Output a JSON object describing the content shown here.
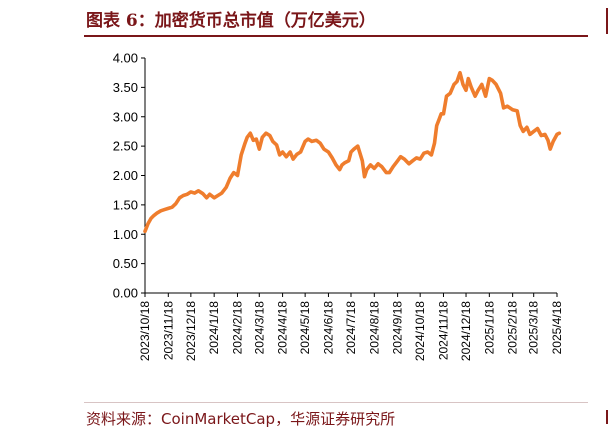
{
  "header": {
    "title": "图表 6：加密货币总市值（万亿美元）"
  },
  "footer": {
    "source": "资料来源：CoinMarketCap，华源证券研究所"
  },
  "colors": {
    "accent": "#7a1619",
    "series": "#ef7d2d"
  },
  "chart_data": {
    "type": "line",
    "title": "图表 6：加密货币总市值（万亿美元）",
    "xlabel": "",
    "ylabel": "",
    "ylim": [
      0,
      4
    ],
    "yticks": [
      "0.00",
      "0.50",
      "1.00",
      "1.50",
      "2.00",
      "2.50",
      "3.00",
      "3.50",
      "4.00"
    ],
    "xticks": [
      "2023/10/18",
      "2023/11/18",
      "2023/12/18",
      "2024/1/18",
      "2024/2/18",
      "2024/3/18",
      "2024/4/18",
      "2024/5/18",
      "2024/6/18",
      "2024/7/18",
      "2024/8/18",
      "2024/9/18",
      "2024/10/18",
      "2024/11/18",
      "2024/12/18",
      "2025/1/18",
      "2025/2/18",
      "2025/3/18",
      "2025/4/18"
    ],
    "grid": false,
    "legend": "none",
    "series": [
      {
        "x": [
          "2023/10/18",
          "2023/10/22",
          "2023/10/26",
          "2023/10/30",
          "2023/11/3",
          "2023/11/8",
          "2023/11/13",
          "2023/11/18",
          "2023/11/23",
          "2023/11/28",
          "2023/12/3",
          "2023/12/8",
          "2023/12/13",
          "2023/12/18",
          "2023/12/23",
          "2023/12/28",
          "2024/1/3",
          "2024/1/8",
          "2024/1/12",
          "2024/1/18",
          "2024/1/23",
          "2024/1/28",
          "2024/2/3",
          "2024/2/8",
          "2024/2/13",
          "2024/2/18",
          "2024/2/23",
          "2024/2/28",
          "2024/3/2",
          "2024/3/6",
          "2024/3/10",
          "2024/3/14",
          "2024/3/18",
          "2024/3/22",
          "2024/3/27",
          "2024/4/1",
          "2024/4/5",
          "2024/4/10",
          "2024/4/14",
          "2024/4/18",
          "2024/4/23",
          "2024/4/28",
          "2024/5/2",
          "2024/5/7",
          "2024/5/12",
          "2024/5/18",
          "2024/5/22",
          "2024/5/27",
          "2024/6/2",
          "2024/6/7",
          "2024/6/12",
          "2024/6/18",
          "2024/6/23",
          "2024/6/28",
          "2024/7/3",
          "2024/7/6",
          "2024/7/10",
          "2024/7/15",
          "2024/7/18",
          "2024/7/22",
          "2024/7/27",
          "2024/8/2",
          "2024/8/5",
          "2024/8/8",
          "2024/8/13",
          "2024/8/18",
          "2024/8/23",
          "2024/8/28",
          "2024/9/3",
          "2024/9/7",
          "2024/9/12",
          "2024/9/18",
          "2024/9/22",
          "2024/9/27",
          "2024/10/3",
          "2024/10/8",
          "2024/10/13",
          "2024/10/18",
          "2024/10/23",
          "2024/10/28",
          "2024/11/2",
          "2024/11/6",
          "2024/11/9",
          "2024/11/12",
          "2024/11/15",
          "2024/11/18",
          "2024/11/22",
          "2024/11/27",
          "2024/12/2",
          "2024/12/6",
          "2024/12/10",
          "2024/12/14",
          "2024/12/18",
          "2024/12/21",
          "2024/12/25",
          "2024/12/30",
          "2025/1/3",
          "2025/1/8",
          "2025/1/13",
          "2025/1/18",
          "2025/1/22",
          "2025/1/27",
          "2025/2/2",
          "2025/2/6",
          "2025/2/11",
          "2025/2/18",
          "2025/2/24",
          "2025/2/28",
          "2025/3/4",
          "2025/3/9",
          "2025/3/13",
          "2025/3/18",
          "2025/3/23",
          "2025/3/28",
          "2025/4/2",
          "2025/4/6",
          "2025/4/9",
          "2025/4/13",
          "2025/4/18",
          "2025/4/21"
        ],
        "values": [
          1.05,
          1.18,
          1.27,
          1.32,
          1.36,
          1.4,
          1.42,
          1.44,
          1.46,
          1.52,
          1.62,
          1.66,
          1.68,
          1.72,
          1.7,
          1.74,
          1.69,
          1.62,
          1.68,
          1.62,
          1.66,
          1.7,
          1.8,
          1.95,
          2.05,
          2.0,
          2.35,
          2.55,
          2.65,
          2.72,
          2.6,
          2.62,
          2.45,
          2.65,
          2.72,
          2.68,
          2.58,
          2.52,
          2.35,
          2.4,
          2.32,
          2.4,
          2.28,
          2.36,
          2.4,
          2.58,
          2.62,
          2.58,
          2.6,
          2.55,
          2.45,
          2.4,
          2.3,
          2.18,
          2.1,
          2.18,
          2.22,
          2.25,
          2.4,
          2.45,
          2.5,
          2.25,
          1.98,
          2.1,
          2.18,
          2.12,
          2.2,
          2.15,
          2.05,
          2.05,
          2.15,
          2.25,
          2.32,
          2.28,
          2.2,
          2.25,
          2.3,
          2.28,
          2.38,
          2.4,
          2.35,
          2.55,
          2.85,
          2.95,
          3.05,
          3.05,
          3.35,
          3.4,
          3.55,
          3.6,
          3.75,
          3.55,
          3.45,
          3.65,
          3.5,
          3.35,
          3.45,
          3.55,
          3.35,
          3.65,
          3.62,
          3.55,
          3.4,
          3.15,
          3.18,
          3.12,
          3.1,
          2.85,
          2.75,
          2.82,
          2.7,
          2.75,
          2.8,
          2.68,
          2.7,
          2.6,
          2.45,
          2.58,
          2.7,
          2.72
        ]
      }
    ]
  }
}
